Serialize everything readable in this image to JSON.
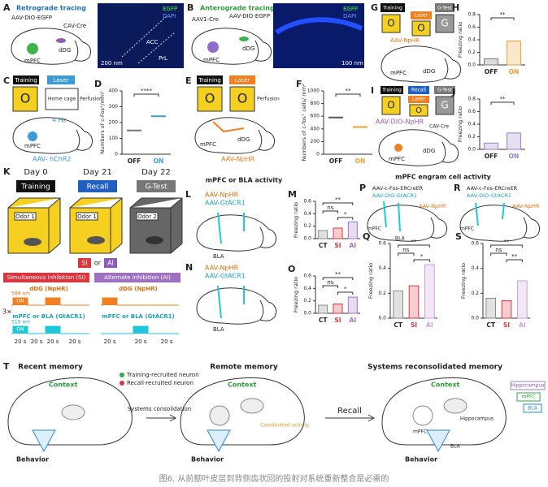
{
  "panels": {
    "A": {
      "label": "A",
      "title": "Retrograde tracing",
      "texts": [
        "AAV-DIO-EGFP",
        "CAV-Cre",
        "dDG",
        "mPFC",
        "EGFP",
        "DAPI",
        "ACC",
        "PrL",
        "200 nm"
      ]
    },
    "B": {
      "label": "B",
      "title": "Anterograde tracing",
      "texts": [
        "AAV1-Cre",
        "AAV-DIO-EGFP",
        "mPFC",
        "dDG",
        "EGFP",
        "DAPI",
        "100 nm"
      ]
    },
    "C": {
      "label": "C",
      "texts": [
        "Training",
        "Laser",
        "Home cage",
        "Perfusion",
        "4 Hz",
        "mPFC",
        "AAV- hChR2"
      ]
    },
    "E": {
      "label": "E",
      "texts": [
        "Training",
        "Laser",
        "Perfusion",
        "mPFC",
        "dDG",
        "AAV-NpHR"
      ]
    },
    "G": {
      "label": "G",
      "texts": [
        "Training",
        "Laser",
        "G-Test",
        "AAV-NpHR",
        "mPFC",
        "dDG"
      ]
    },
    "I": {
      "label": "I",
      "texts": [
        "Training",
        "Recall",
        "Laser",
        "G-Test",
        "AAV-DIO-NpHR",
        "CAV-Cre",
        "mPFC",
        "dDG"
      ]
    },
    "K": {
      "label": "K",
      "texts": [
        "Day 0",
        "Day 21",
        "Day 22",
        "Training",
        "Recall",
        "G-Test",
        "Odor 1",
        "Odor 2",
        "SI",
        "or",
        "AI",
        "Simultaneous inhibition (SI)",
        "Alternate inhibition (AI)",
        "dDG (NpHR)",
        "589 nm",
        "ON",
        "mPFC or BLA (GtACR1)",
        "510 nm",
        "3×",
        "20 s"
      ]
    },
    "L": {
      "label": "L",
      "texts": [
        "AAV-NpHR",
        "AAV-GtACR1",
        "BLA"
      ]
    },
    "N": {
      "label": "N",
      "texts": [
        "AAV-NpHR",
        "AAV-GtACR1",
        "BLA"
      ]
    },
    "P": {
      "label": "P",
      "texts": [
        "AAV-c-Fos-ERCreER",
        "AAV-DIO-GtACR1",
        "AAV-NpHR",
        "mPFC",
        "BLA"
      ]
    },
    "R": {
      "label": "R",
      "texts": [
        "AAV-c-Fos-ERCreER",
        "AAV-DIO-GtACR1",
        "AAV-NpHR",
        "mPFC"
      ]
    },
    "T": {
      "label": "T",
      "texts": [
        "Recent memory",
        "Remote memory",
        "Systems reconsolidated memory",
        "Context",
        "Behavior",
        "Training-recruited neuron",
        "Recall-recruited neuron",
        "Systems consolidation",
        "Coordinated activity",
        "Recall",
        "mPFC",
        "Hippocampus",
        "BLA"
      ]
    }
  },
  "symbols": [
    "O",
    "G"
  ],
  "headers": [
    "mPFC or BLA activity",
    "mPFC engram cell activity"
  ],
  "charts": [
    {
      "label": "D",
      "type": "strip",
      "ylabel": "Numbers of c-Fos⁺/mm²",
      "categories": [
        "OFF",
        "ON"
      ],
      "values": [
        150,
        240
      ],
      "colors": [
        "#777777",
        "#3a9bd5"
      ],
      "ylim": [
        0,
        400
      ],
      "yticks": [
        0,
        100,
        200,
        300,
        400
      ],
      "significance": [
        "****"
      ]
    },
    {
      "label": "F",
      "type": "strip",
      "ylabel": "Numbers of c-fos⁺ cells/ mm²",
      "categories": [
        "OFF",
        "ON"
      ],
      "values": [
        580,
        430
      ],
      "colors": [
        "#555555",
        "#f0a030"
      ],
      "ylim": [
        0,
        1000
      ],
      "yticks": [
        0,
        200,
        400,
        600,
        800,
        1000
      ],
      "significance": [
        "**"
      ]
    },
    {
      "label": "H",
      "type": "bar",
      "ylabel": "Freezing ratio",
      "categories": [
        "OFF",
        "ON"
      ],
      "values": [
        0.1,
        0.38
      ],
      "colors": [
        "#777777",
        "#f0a030"
      ],
      "ylim": [
        0,
        0.8
      ],
      "yticks": [
        {
          "value": 0,
          "label": "0.0"
        },
        0.2,
        0.4,
        0.6,
        0.8
      ],
      "significance": [
        "**"
      ]
    },
    {
      "label": "J",
      "type": "bar",
      "ylabel": "Freezing ratio",
      "categories": [
        "OFF",
        "ON"
      ],
      "values": [
        0.1,
        0.26
      ],
      "colors": [
        "#9b7fc8",
        "#9b7fc8"
      ],
      "ylim": [
        0,
        0.8
      ],
      "yticks": [
        {
          "value": 0,
          "label": "0.0"
        },
        0.2,
        0.4,
        0.6,
        0.8
      ],
      "significance": [
        "**"
      ]
    },
    {
      "label": "M",
      "type": "bar",
      "ylabel": "Freezing ratio",
      "categories": [
        "CT",
        "SI",
        "AI"
      ],
      "values": [
        0.13,
        0.17,
        0.27
      ],
      "colors": [
        "#888888",
        "#d9363e",
        "#a070c0"
      ],
      "ylim": [
        0,
        0.6
      ],
      "yticks": [
        {
          "value": 0,
          "label": "0.0"
        },
        0.2,
        0.4,
        0.6
      ],
      "significance": [
        "**",
        "ns",
        "*"
      ]
    },
    {
      "label": "O",
      "type": "bar",
      "ylabel": "Freezing ratio",
      "categories": [
        "CT",
        "SI",
        "AI"
      ],
      "values": [
        0.13,
        0.15,
        0.26
      ],
      "colors": [
        "#888888",
        "#d9363e",
        "#a070c0"
      ],
      "ylim": [
        0,
        0.6
      ],
      "yticks": [
        {
          "value": 0,
          "label": "0.0"
        },
        0.2,
        0.4,
        0.6
      ],
      "significance": [
        "**",
        "ns",
        "*"
      ]
    },
    {
      "label": "Q",
      "type": "bar",
      "ylabel": "Freezing ratio",
      "categories": [
        "CT",
        "SI",
        "AI"
      ],
      "values": [
        0.22,
        0.26,
        0.43
      ],
      "colors": [
        "#888888",
        "#d9363e",
        "#c9a0dc"
      ],
      "ylim": [
        0,
        0.6
      ],
      "yticks": [
        {
          "value": 0,
          "label": "0.0"
        },
        0.2,
        0.4,
        0.6
      ],
      "significance": [
        "**",
        "ns",
        "*"
      ]
    },
    {
      "label": "S",
      "type": "bar",
      "ylabel": "Freezing ratio",
      "categories": [
        "CT",
        "SI",
        "AI"
      ],
      "values": [
        0.16,
        0.14,
        0.3
      ],
      "colors": [
        "#888888",
        "#d9363e",
        "#c9a0dc"
      ],
      "ylim": [
        0,
        0.6
      ],
      "yticks": [
        {
          "value": 0,
          "label": "0.0"
        },
        0.2,
        0.4,
        0.6
      ],
      "significance": [
        "**",
        "ns",
        "**"
      ]
    }
  ],
  "caption": "图6. 从前额叶皮层到背侧齿状回的投射对系统重新整合是必需的"
}
